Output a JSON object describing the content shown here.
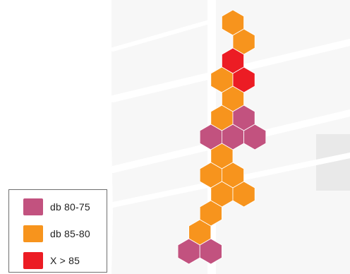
{
  "legend": {
    "items": [
      {
        "id": "db80-75",
        "label": "db 80-75",
        "color": "#c2527f"
      },
      {
        "id": "db85-80",
        "label": "db 85-80",
        "color": "#f7941d"
      },
      {
        "id": "x85",
        "label": "X > 85",
        "color": "#ec1c24"
      }
    ]
  },
  "map": {
    "background_color": "#f7f7f7",
    "road_color": "#ffffff",
    "hex_cells": [
      {
        "row": 0,
        "col": 0,
        "class": "db85-80"
      },
      {
        "row": 1,
        "col": 1,
        "class": "db85-80"
      },
      {
        "row": 2,
        "col": 0,
        "class": "x85"
      },
      {
        "row": 3,
        "col": -1,
        "class": "db85-80"
      },
      {
        "row": 3,
        "col": 1,
        "class": "x85"
      },
      {
        "row": 4,
        "col": 0,
        "class": "db85-80"
      },
      {
        "row": 5,
        "col": -1,
        "class": "db85-80"
      },
      {
        "row": 5,
        "col": 1,
        "class": "db80-75"
      },
      {
        "row": 6,
        "col": -2,
        "class": "db80-75"
      },
      {
        "row": 6,
        "col": 0,
        "class": "db80-75"
      },
      {
        "row": 6,
        "col": 2,
        "class": "db80-75"
      },
      {
        "row": 7,
        "col": -1,
        "class": "db85-80"
      },
      {
        "row": 8,
        "col": -2,
        "class": "db85-80"
      },
      {
        "row": 8,
        "col": 0,
        "class": "db85-80"
      },
      {
        "row": 9,
        "col": -1,
        "class": "db85-80"
      },
      {
        "row": 9,
        "col": 1,
        "class": "db85-80"
      },
      {
        "row": 10,
        "col": -2,
        "class": "db85-80"
      },
      {
        "row": 11,
        "col": -3,
        "class": "db85-80"
      },
      {
        "row": 12,
        "col": -4,
        "class": "db80-75"
      },
      {
        "row": 12,
        "col": -2,
        "class": "db80-75"
      }
    ]
  }
}
